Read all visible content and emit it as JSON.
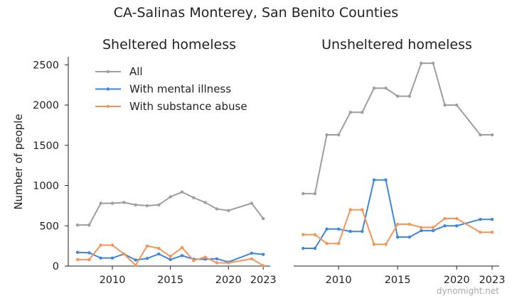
{
  "title": "CA-Salinas Monterey, San Benito Counties",
  "watermark": "dynomight.net",
  "colors": {
    "All": "#9e9e9e",
    "With mental illness": "#3f86da",
    "With substance abuse": "#f59555"
  },
  "chart_data": [
    {
      "type": "line",
      "title": "Sheltered homeless",
      "ylabel": "Number of people",
      "xlabel": "",
      "xlim": [
        2006.2,
        2023.6
      ],
      "ylim": [
        0,
        2600
      ],
      "xticks": [
        2010,
        2015,
        2020,
        2023
      ],
      "yticks": [
        0,
        500,
        1000,
        1500,
        2000,
        2500
      ],
      "grid": false,
      "legend": "top-left",
      "series": [
        {
          "name": "All",
          "x": [
            2007,
            2008,
            2009,
            2010,
            2011,
            2012,
            2013,
            2014,
            2015,
            2016,
            2017,
            2018,
            2019,
            2020,
            2022,
            2023
          ],
          "y": [
            510,
            510,
            780,
            780,
            790,
            760,
            750,
            760,
            860,
            920,
            850,
            790,
            710,
            690,
            780,
            590
          ]
        },
        {
          "name": "With mental illness",
          "x": [
            2007,
            2008,
            2009,
            2010,
            2011,
            2012,
            2013,
            2014,
            2015,
            2016,
            2017,
            2018,
            2019,
            2020,
            2022,
            2023
          ],
          "y": [
            170,
            165,
            100,
            100,
            150,
            75,
            95,
            150,
            80,
            130,
            85,
            85,
            90,
            50,
            160,
            145
          ]
        },
        {
          "name": "With substance abuse",
          "x": [
            2007,
            2008,
            2009,
            2010,
            2011,
            2012,
            2013,
            2014,
            2015,
            2016,
            2017,
            2018,
            2019,
            2020,
            2022,
            2023
          ],
          "y": [
            80,
            80,
            260,
            260,
            150,
            10,
            250,
            220,
            120,
            230,
            70,
            110,
            40,
            40,
            90,
            5
          ]
        }
      ]
    },
    {
      "type": "line",
      "title": "Unsheltered homeless",
      "xlabel": "",
      "ylabel": "",
      "xlim": [
        2006.2,
        2023.6
      ],
      "ylim": [
        0,
        2600
      ],
      "xticks": [
        2010,
        2015,
        2020,
        2023
      ],
      "grid": false,
      "series": [
        {
          "name": "All",
          "x": [
            2007,
            2008,
            2009,
            2010,
            2011,
            2012,
            2013,
            2014,
            2015,
            2016,
            2017,
            2018,
            2019,
            2020,
            2022,
            2023
          ],
          "y": [
            900,
            900,
            1630,
            1630,
            1910,
            1910,
            2210,
            2210,
            2110,
            2110,
            2520,
            2520,
            2000,
            2000,
            1630,
            1630
          ]
        },
        {
          "name": "With mental illness",
          "x": [
            2007,
            2008,
            2009,
            2010,
            2011,
            2012,
            2013,
            2014,
            2015,
            2016,
            2017,
            2018,
            2019,
            2020,
            2022,
            2023
          ],
          "y": [
            220,
            220,
            460,
            460,
            430,
            430,
            1070,
            1070,
            360,
            360,
            440,
            440,
            500,
            500,
            580,
            580
          ]
        },
        {
          "name": "With substance abuse",
          "x": [
            2007,
            2008,
            2009,
            2010,
            2011,
            2012,
            2013,
            2014,
            2015,
            2016,
            2017,
            2018,
            2019,
            2020,
            2022,
            2023
          ],
          "y": [
            390,
            390,
            280,
            280,
            700,
            700,
            270,
            270,
            520,
            520,
            480,
            480,
            590,
            590,
            420,
            420
          ]
        }
      ]
    }
  ]
}
